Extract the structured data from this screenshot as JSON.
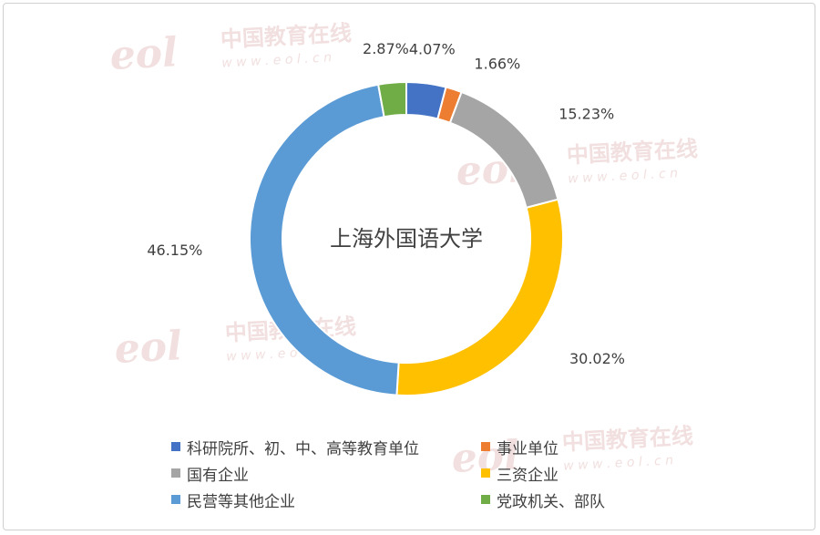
{
  "chart_data": {
    "type": "pie",
    "variant": "donut",
    "center_title": "上海外国语大学",
    "slices": [
      {
        "name": "科研院所、初、中、高等教育单位",
        "value": 4.07,
        "label": "4.07%",
        "color": "#4472C4"
      },
      {
        "name": "事业单位",
        "value": 1.66,
        "label": "1.66%",
        "color": "#ED7D31"
      },
      {
        "name": "国有企业",
        "value": 15.23,
        "label": "15.23%",
        "color": "#A5A5A5"
      },
      {
        "name": "三资企业",
        "value": 30.02,
        "label": "30.02%",
        "color": "#FFC000"
      },
      {
        "name": "民营等其他企业",
        "value": 46.15,
        "label": "46.15%",
        "color": "#5B9BD5"
      },
      {
        "name": "党政机关、部队",
        "value": 2.87,
        "label": "2.87%",
        "color": "#70AD47"
      }
    ],
    "legend_position": "bottom"
  },
  "watermark": {
    "logo_text": "eol",
    "site_text": "中国教育在线",
    "url_text": "w w w . e o l . c n",
    "color": "#e8c7c7"
  }
}
